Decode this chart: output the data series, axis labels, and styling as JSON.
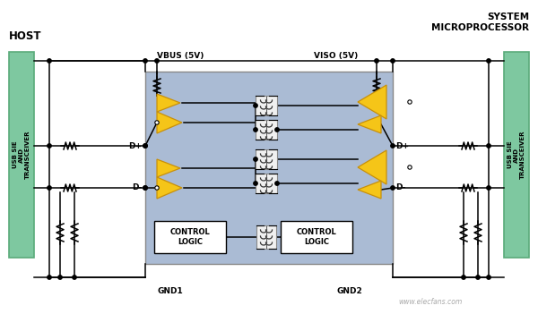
{
  "bg_color": "#ffffff",
  "host_label": "HOST",
  "sys_label": "SYSTEM\nMICROPROCESSOR",
  "usb_left_label": "USB SIE\nAND\nTRANSCEIVER",
  "usb_right_label": "USB SIE\nAND\nTRANSCEIVER",
  "vbus_label": "VBUS (5V)",
  "viso_label": "VISO (5V)",
  "gnd1_label": "GND1",
  "gnd2_label": "GND2",
  "dp_label": "D+",
  "dm_label": "D-",
  "ctrl_logic_label": "CONTROL\nLOGIC",
  "box_bg": "#aabbd4",
  "green_fc": "#7ec8a0",
  "green_ec": "#5aab7a",
  "yellow_fc": "#f5c518",
  "yellow_ec": "#c8900a",
  "white_color": "#ffffff",
  "black_color": "#000000",
  "watermark_text": "www.elecfans.com",
  "watermark_color": "#aaaaaa"
}
